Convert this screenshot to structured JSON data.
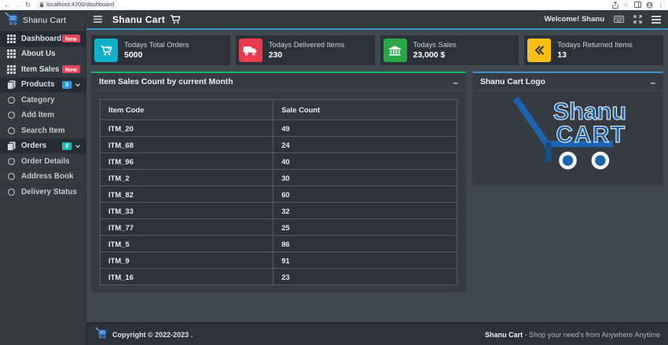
{
  "browser": {
    "url": "localhost:4200/dashboard"
  },
  "sidebar": {
    "brand": "Shanu Cart",
    "items": [
      {
        "label": "Dashboard",
        "icon": "grid",
        "badge": "New",
        "badge_color": "#e3455a",
        "open": true,
        "sub": false,
        "caret": false
      },
      {
        "label": "About Us",
        "icon": "grid",
        "badge": "",
        "badge_color": "",
        "open": false,
        "sub": false,
        "caret": false
      },
      {
        "label": "Item Sales",
        "icon": "grid",
        "badge": "New",
        "badge_color": "#e3455a",
        "open": false,
        "sub": false,
        "caret": false
      },
      {
        "label": "Products",
        "icon": "copy",
        "badge": "3",
        "badge_color": "#2d9cdb",
        "open": true,
        "sub": false,
        "caret": true
      },
      {
        "label": "Category",
        "icon": "circle",
        "badge": "",
        "badge_color": "",
        "open": false,
        "sub": true,
        "caret": false
      },
      {
        "label": "Add Item",
        "icon": "circle",
        "badge": "",
        "badge_color": "",
        "open": false,
        "sub": true,
        "caret": false
      },
      {
        "label": "Search Item",
        "icon": "circle",
        "badge": "",
        "badge_color": "",
        "open": false,
        "sub": true,
        "caret": false
      },
      {
        "label": "Orders",
        "icon": "copy",
        "badge": "3",
        "badge_color": "#1fbcb4",
        "open": true,
        "sub": false,
        "caret": true
      },
      {
        "label": "Order Details",
        "icon": "circle",
        "badge": "",
        "badge_color": "",
        "open": false,
        "sub": true,
        "caret": false
      },
      {
        "label": "Address Book",
        "icon": "circle",
        "badge": "",
        "badge_color": "",
        "open": false,
        "sub": true,
        "caret": false
      },
      {
        "label": "Delivery Status",
        "icon": "circle",
        "badge": "",
        "badge_color": "",
        "open": false,
        "sub": true,
        "caret": false
      }
    ]
  },
  "navbar": {
    "title": "Shanu Cart",
    "welcome": "Welcome! Shanu"
  },
  "cards": [
    {
      "label": "Todays Total Orders",
      "value": "5000",
      "icon": "cart-plus",
      "color": "#0fb0c9",
      "icon_color": "#ffffff"
    },
    {
      "label": "Todays Delivered Items",
      "value": "230",
      "icon": "truck",
      "color": "#e93a4e",
      "icon_color": "#ffffff"
    },
    {
      "label": "Todays Sales",
      "value": "23,000 $",
      "icon": "bank",
      "color": "#28a745",
      "icon_color": "#ffffff"
    },
    {
      "label": "Todays Returned Items",
      "value": "13",
      "icon": "angle-double-left",
      "color": "#fdbf16",
      "icon_color": "#343a40"
    }
  ],
  "sales_panel": {
    "title": "Item Sales Count by current Month",
    "minimize": "–",
    "accent_color": "#1eb770",
    "table": {
      "headers": [
        "Item Code",
        "Sale Count"
      ],
      "rows": [
        [
          "ITM_20",
          "49"
        ],
        [
          "ITM_68",
          "24"
        ],
        [
          "ITM_96",
          "40"
        ],
        [
          "ITM_2",
          "30"
        ],
        [
          "ITM_82",
          "60"
        ],
        [
          "ITM_33",
          "32"
        ],
        [
          "ITM_77",
          "25"
        ],
        [
          "ITM_5",
          "86"
        ],
        [
          "ITM_9",
          "91"
        ],
        [
          "ITM_16",
          "23"
        ]
      ]
    }
  },
  "logo_panel": {
    "title": "Shanu Cart Logo",
    "minimize": "–",
    "accent_color": "#3f8fc8",
    "logo_line1": "Shanu",
    "logo_line2": "CART",
    "logo_color": "#1d64b0"
  },
  "footer": {
    "copyright": "Copyright © 2022-2023 .",
    "brand": "Shanu Cart",
    "tagline": " - Shop your need's from Anywhere Anytime"
  }
}
